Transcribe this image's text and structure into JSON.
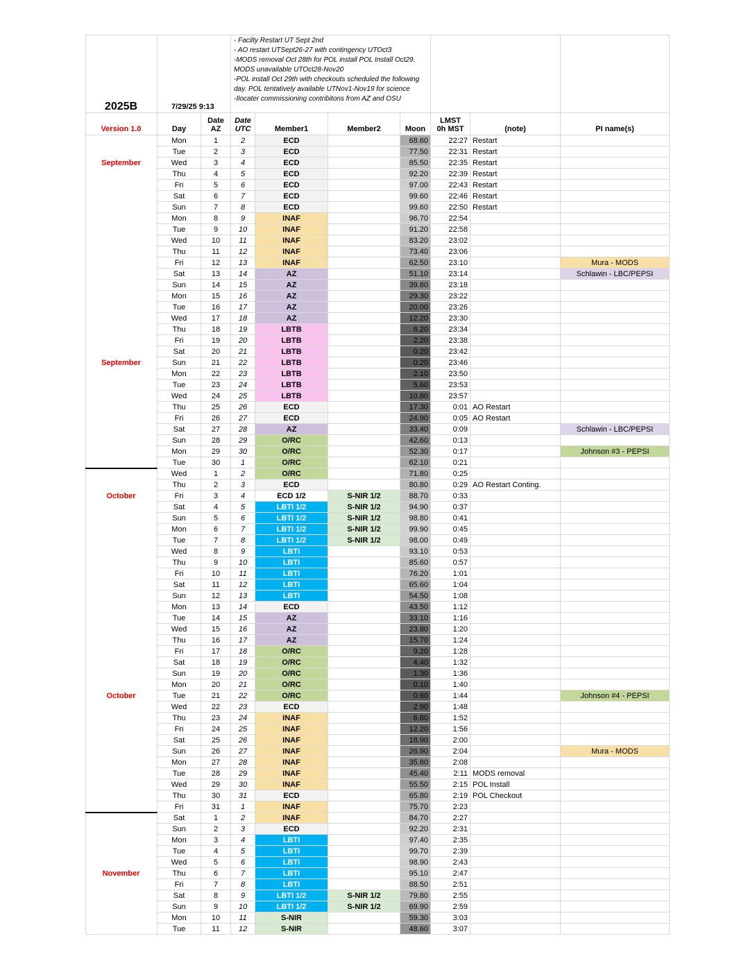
{
  "header": {
    "semester": "2025B",
    "timestamp": "7/29/25 9:13",
    "notes": [
      "- Facilty Restart UT Sept 2nd",
      "- AO restart UTSept26-27 with contingency UTOct3",
      "-MODS removal Oct 28th for POL install POL Install Oct29. MODS unavailable UTOct28-Nov20",
      "-POL install Oct 29th with checkouts scheduled the following day.  POL tentatively available UTNov1-Nov19 for science",
      "-Ilocater commissioning contribitons from AZ and OSU"
    ],
    "columns": [
      "Version 1.0",
      "Day",
      "Date\nAZ",
      "Date\nUTC",
      "Member1",
      "Member2",
      "Moon",
      "LMST\n0h MST",
      "(note)",
      "PI name(s)"
    ]
  },
  "styles": {
    "ECD": {
      "bg": "#f2f2f2",
      "fg": "#000000"
    },
    "ECD 1/2": {
      "bg": "#ffffff",
      "fg": "#000000"
    },
    "INAF": {
      "bg": "#f8dfa6",
      "fg": "#000000"
    },
    "AZ": {
      "bg": "#ccc0da",
      "fg": "#000000"
    },
    "LBTB": {
      "bg": "#f9c3ed",
      "fg": "#000000"
    },
    "O/RC": {
      "bg": "#c4d79b",
      "fg": "#000000"
    },
    "LBTI": {
      "bg": "#00b0f0",
      "fg": "#ffffff"
    },
    "LBTI 1/2": {
      "bg": "#00b0f0",
      "fg": "#ffffff"
    },
    "S-NIR": {
      "bg": "#d9ead3",
      "fg": "#000000"
    },
    "S-NIR 1/2": {
      "bg": "#d9ead3",
      "fg": "#000000"
    },
    "Mura - MODS": {
      "bg": "#f8dfa6",
      "fg": "#000000"
    },
    "Schlawin - LBC/PEPSI": {
      "bg": "#ddd4ea",
      "fg": "#000000"
    },
    "Johnson #3 - PEPSI": {
      "bg": "#c4d79b",
      "fg": "#000000"
    },
    "Johnson #4 - PEPSI": {
      "bg": "#c4d79b",
      "fg": "#000000"
    }
  },
  "rows": [
    [
      null,
      "Mon",
      "1",
      "2",
      "ECD",
      null,
      "68.60",
      "22:27",
      "Restart",
      null
    ],
    [
      null,
      "Tue",
      "2",
      "3",
      "ECD",
      null,
      "77.50",
      "22:31",
      "Restart",
      null
    ],
    [
      "September",
      "Wed",
      "3",
      "4",
      "ECD",
      null,
      "85.50",
      "22:35",
      "Restart",
      null
    ],
    [
      null,
      "Thu",
      "4",
      "5",
      "ECD",
      null,
      "92.20",
      "22:39",
      "Restart",
      null
    ],
    [
      null,
      "Fri",
      "5",
      "6",
      "ECD",
      null,
      "97.00",
      "22:43",
      "Restart",
      null
    ],
    [
      null,
      "Sat",
      "6",
      "7",
      "ECD",
      null,
      "99.60",
      "22:46",
      "Restart",
      null
    ],
    [
      null,
      "Sun",
      "7",
      "8",
      "ECD",
      null,
      "99.60",
      "22:50",
      "Restart",
      null
    ],
    [
      null,
      "Mon",
      "8",
      "9",
      "INAF",
      null,
      "96.70",
      "22:54",
      null,
      null
    ],
    [
      null,
      "Tue",
      "9",
      "10",
      "INAF",
      null,
      "91.20",
      "22:58",
      null,
      null
    ],
    [
      null,
      "Wed",
      "10",
      "11",
      "INAF",
      null,
      "83.20",
      "23:02",
      null,
      null
    ],
    [
      null,
      "Thu",
      "11",
      "12",
      "INAF",
      null,
      "73.40",
      "23:06",
      null,
      null
    ],
    [
      null,
      "Fri",
      "12",
      "13",
      "INAF",
      null,
      "62.50",
      "23:10",
      null,
      "Mura - MODS"
    ],
    [
      null,
      "Sat",
      "13",
      "14",
      "AZ",
      null,
      "51.10",
      "23:14",
      null,
      "Schlawin - LBC/PEPSI"
    ],
    [
      null,
      "Sun",
      "14",
      "15",
      "AZ",
      null,
      "39.80",
      "23:18",
      null,
      null
    ],
    [
      null,
      "Mon",
      "15",
      "16",
      "AZ",
      null,
      "29.30",
      "23:22",
      null,
      null
    ],
    [
      null,
      "Tue",
      "16",
      "17",
      "AZ",
      null,
      "20.00",
      "23:26",
      null,
      null
    ],
    [
      null,
      "Wed",
      "17",
      "18",
      "AZ",
      null,
      "12.20",
      "23:30",
      null,
      null
    ],
    [
      null,
      "Thu",
      "18",
      "19",
      "LBTB",
      null,
      "6.20",
      "23:34",
      null,
      null
    ],
    [
      null,
      "Fri",
      "19",
      "20",
      "LBTB",
      null,
      "2.20",
      "23:38",
      null,
      null
    ],
    [
      null,
      "Sat",
      "20",
      "21",
      "LBTB",
      null,
      "0.20",
      "23:42",
      null,
      null
    ],
    [
      "September",
      "Sun",
      "21",
      "22",
      "LBTB",
      null,
      "0.20",
      "23:46",
      null,
      null
    ],
    [
      null,
      "Mon",
      "22",
      "23",
      "LBTB",
      null,
      "2.10",
      "23:50",
      null,
      null
    ],
    [
      null,
      "Tue",
      "23",
      "24",
      "LBTB",
      null,
      "5.60",
      "23:53",
      null,
      null
    ],
    [
      null,
      "Wed",
      "24",
      "25",
      "LBTB",
      null,
      "10.80",
      "23:57",
      null,
      null
    ],
    [
      null,
      "Thu",
      "25",
      "26",
      "ECD",
      null,
      "17.30",
      "0:01",
      "AO Restart",
      null
    ],
    [
      null,
      "Fri",
      "26",
      "27",
      "ECD",
      null,
      "24.90",
      "0:05",
      "AO Restart",
      null
    ],
    [
      null,
      "Sat",
      "27",
      "28",
      "AZ",
      null,
      "33.40",
      "0:09",
      null,
      "Schlawin - LBC/PEPSI"
    ],
    [
      null,
      "Sun",
      "28",
      "29",
      "O/RC",
      null,
      "42.60",
      "0:13",
      null,
      null
    ],
    [
      null,
      "Mon",
      "29",
      "30",
      "O/RC",
      null,
      "52.30",
      "0:17",
      null,
      "Johnson #3 - PEPSI"
    ],
    [
      null,
      "Tue",
      "30",
      "1",
      "O/RC",
      null,
      "62.10",
      "0:21",
      null,
      null
    ],
    [
      null,
      "Wed",
      "1",
      "2",
      "O/RC",
      null,
      "71.80",
      "0:25",
      null,
      null
    ],
    [
      null,
      "Thu",
      "2",
      "3",
      "ECD",
      null,
      "80.80",
      "0:29",
      "AO Restart Conting.",
      null
    ],
    [
      "October",
      "Fri",
      "3",
      "4",
      "ECD 1/2",
      "S-NIR 1/2",
      "88.70",
      "0:33",
      null,
      null
    ],
    [
      null,
      "Sat",
      "4",
      "5",
      "LBTI 1/2",
      "S-NIR 1/2",
      "94.90",
      "0:37",
      null,
      null
    ],
    [
      null,
      "Sun",
      "5",
      "6",
      "LBTI 1/2",
      "S-NIR 1/2",
      "98.80",
      "0:41",
      null,
      null
    ],
    [
      null,
      "Mon",
      "6",
      "7",
      "LBTI 1/2",
      "S-NIR 1/2",
      "99.90",
      "0:45",
      null,
      null
    ],
    [
      null,
      "Tue",
      "7",
      "8",
      "LBTI 1/2",
      "S-NIR 1/2",
      "98.00",
      "0:49",
      null,
      null
    ],
    [
      null,
      "Wed",
      "8",
      "9",
      "LBTI",
      null,
      "93.10",
      "0:53",
      null,
      null
    ],
    [
      null,
      "Thu",
      "9",
      "10",
      "LBTI",
      null,
      "85.60",
      "0:57",
      null,
      null
    ],
    [
      null,
      "Fri",
      "10",
      "11",
      "LBTI",
      null,
      "76.20",
      "1:01",
      null,
      null
    ],
    [
      null,
      "Sat",
      "11",
      "12",
      "LBTI",
      null,
      "65.60",
      "1:04",
      null,
      null
    ],
    [
      null,
      "Sun",
      "12",
      "13",
      "LBTI",
      null,
      "54.50",
      "1:08",
      null,
      null
    ],
    [
      null,
      "Mon",
      "13",
      "14",
      "ECD",
      null,
      "43.50",
      "1:12",
      null,
      null
    ],
    [
      null,
      "Tue",
      "14",
      "15",
      "AZ",
      null,
      "33.10",
      "1:16",
      null,
      null
    ],
    [
      null,
      "Wed",
      "15",
      "16",
      "AZ",
      null,
      "23.80",
      "1:20",
      null,
      null
    ],
    [
      null,
      "Thu",
      "16",
      "17",
      "AZ",
      null,
      "15.70",
      "1:24",
      null,
      null
    ],
    [
      null,
      "Fri",
      "17",
      "18",
      "O/RC",
      null,
      "9.20",
      "1:28",
      null,
      null
    ],
    [
      null,
      "Sat",
      "18",
      "19",
      "O/RC",
      null,
      "4.40",
      "1:32",
      null,
      null
    ],
    [
      null,
      "Sun",
      "19",
      "20",
      "O/RC",
      null,
      "1.30",
      "1:36",
      null,
      null
    ],
    [
      null,
      "Mon",
      "20",
      "21",
      "O/RC",
      null,
      "0.10",
      "1:40",
      null,
      null
    ],
    [
      "October",
      "Tue",
      "21",
      "22",
      "O/RC",
      null,
      "0.60",
      "1:44",
      null,
      "Johnson #4 - PEPSI"
    ],
    [
      null,
      "Wed",
      "22",
      "23",
      "ECD",
      null,
      "2.90",
      "1:48",
      null,
      null
    ],
    [
      null,
      "Thu",
      "23",
      "24",
      "INAF",
      null,
      "6.80",
      "1:52",
      null,
      null
    ],
    [
      null,
      "Fri",
      "24",
      "25",
      "INAF",
      null,
      "12.20",
      "1:56",
      null,
      null
    ],
    [
      null,
      "Sat",
      "25",
      "26",
      "INAF",
      null,
      "18.90",
      "2:00",
      null,
      null
    ],
    [
      null,
      "Sun",
      "26",
      "27",
      "INAF",
      null,
      "26.90",
      "2:04",
      null,
      "Mura - MODS"
    ],
    [
      null,
      "Mon",
      "27",
      "28",
      "INAF",
      null,
      "35.80",
      "2:08",
      null,
      null
    ],
    [
      null,
      "Tue",
      "28",
      "29",
      "INAF",
      null,
      "45.40",
      "2:11",
      "MODS removal",
      null
    ],
    [
      null,
      "Wed",
      "29",
      "30",
      "INAF",
      null,
      "55.50",
      "2:15",
      "POL Install",
      null
    ],
    [
      null,
      "Thu",
      "30",
      "31",
      "ECD",
      null,
      "65.80",
      "2:19",
      "POL Checkout",
      null
    ],
    [
      null,
      "Fri",
      "31",
      "1",
      "INAF",
      null,
      "75.70",
      "2:23",
      null,
      null
    ],
    [
      null,
      "Sat",
      "1",
      "2",
      "INAF",
      null,
      "84.70",
      "2:27",
      null,
      null
    ],
    [
      null,
      "Sun",
      "2",
      "3",
      "ECD",
      null,
      "92.20",
      "2:31",
      null,
      null
    ],
    [
      null,
      "Mon",
      "3",
      "4",
      "LBTI",
      null,
      "97.40",
      "2:35",
      null,
      null
    ],
    [
      null,
      "Tue",
      "4",
      "5",
      "LBTI",
      null,
      "99.70",
      "2:39",
      null,
      null
    ],
    [
      null,
      "Wed",
      "5",
      "6",
      "LBTI",
      null,
      "98.90",
      "2:43",
      null,
      null
    ],
    [
      "November",
      "Thu",
      "6",
      "7",
      "LBTI",
      null,
      "95.10",
      "2:47",
      null,
      null
    ],
    [
      null,
      "Fri",
      "7",
      "8",
      "LBTI",
      null,
      "88.50",
      "2:51",
      null,
      null
    ],
    [
      null,
      "Sat",
      "8",
      "9",
      "LBTI 1/2",
      "S-NIR 1/2",
      "79.80",
      "2:55",
      null,
      null
    ],
    [
      null,
      "Sun",
      "9",
      "10",
      "LBTI 1/2",
      "S-NIR 1/2",
      "69.90",
      "2:59",
      null,
      null
    ],
    [
      null,
      "Mon",
      "10",
      "11",
      "S-NIR",
      null,
      "59.30",
      "3:03",
      null,
      null
    ],
    [
      null,
      "Tue",
      "11",
      "12",
      "S-NIR",
      null,
      "48.60",
      "3:07",
      null,
      null
    ]
  ]
}
